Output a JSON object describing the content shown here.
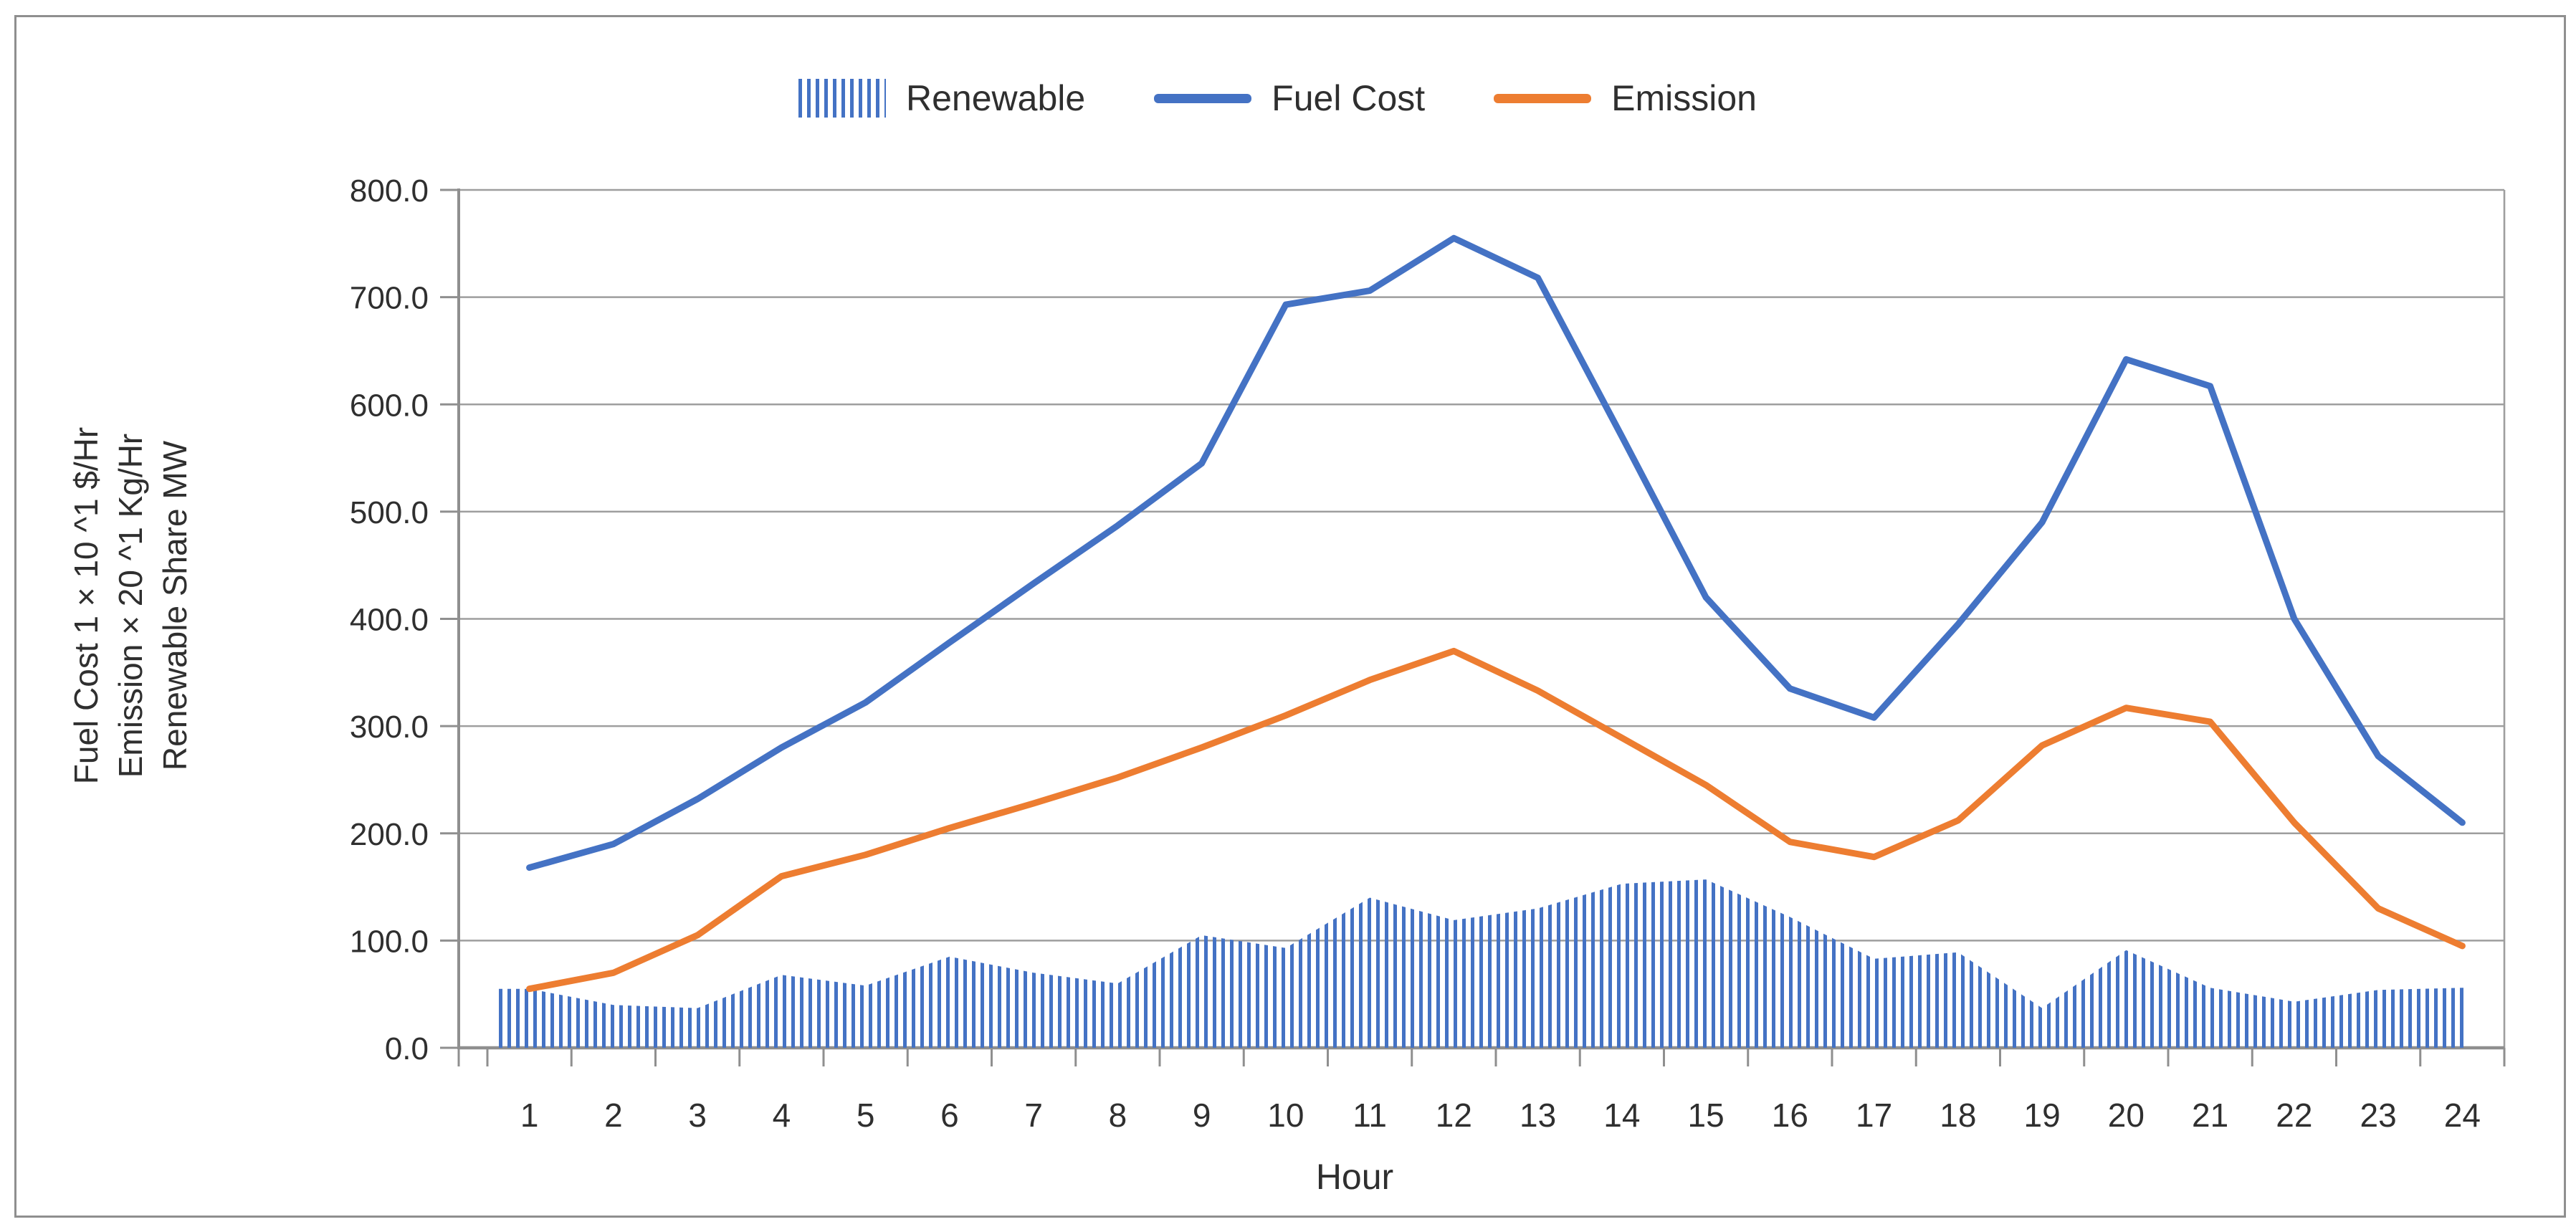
{
  "figure": {
    "background": "#ffffff",
    "border_color": "#8f8f8f"
  },
  "legend": {
    "position": "top",
    "items": [
      {
        "label": "Renewable",
        "swatch": "hatched-bars",
        "color": "#4472C4"
      },
      {
        "label": "Fuel Cost",
        "swatch": "line",
        "color": "#4472C4"
      },
      {
        "label": "Emission",
        "swatch": "line",
        "color": "#ED7D31"
      }
    ]
  },
  "y_axis": {
    "title_lines": [
      "Fuel Cost 1 × 10 ^1 $/Hr",
      "Emission × 20 ^1 Kg/Hr",
      "Renewable Share MW"
    ],
    "ticks": [
      "800.0",
      "700.0",
      "600.0",
      "500.0",
      "400.0",
      "300.0",
      "200.0",
      "100.0",
      "0.0"
    ],
    "min": 0,
    "max": 800,
    "step": 100
  },
  "x_axis": {
    "title": "Hour",
    "ticks": [
      "1",
      "2",
      "3",
      "4",
      "5",
      "6",
      "7",
      "8",
      "9",
      "10",
      "11",
      "12",
      "13",
      "14",
      "15",
      "16",
      "17",
      "18",
      "19",
      "20",
      "21",
      "22",
      "23",
      "24"
    ]
  },
  "chart_data": {
    "type": "combo",
    "title": "",
    "xlabel": "Hour",
    "ylabel": "Fuel Cost 1 × 10 ^1 $/Hr | Emission × 20 ^1 Kg/Hr | Renewable Share MW",
    "ylim": [
      0,
      800
    ],
    "grid": "horizontal",
    "legend_position": "top",
    "categories": [
      1,
      2,
      3,
      4,
      5,
      6,
      7,
      8,
      9,
      10,
      11,
      12,
      13,
      14,
      15,
      16,
      17,
      18,
      19,
      20,
      21,
      22,
      23,
      24
    ],
    "series": [
      {
        "name": "Renewable",
        "type": "hatched-area",
        "color": "#4472C4",
        "values": [
          55,
          40,
          37,
          68,
          58,
          85,
          70,
          60,
          105,
          93,
          140,
          119,
          130,
          153,
          157,
          122,
          83,
          89,
          37,
          91,
          56,
          43,
          54,
          56
        ]
      },
      {
        "name": "Fuel Cost",
        "type": "line",
        "color": "#4472C4",
        "values": [
          168,
          190,
          232,
          280,
          322,
          378,
          433,
          487,
          545,
          693,
          706,
          755,
          718,
          570,
          420,
          335,
          308,
          395,
          490,
          642,
          617,
          400,
          272,
          210
        ]
      },
      {
        "name": "Emission",
        "type": "line",
        "color": "#ED7D31",
        "values": [
          55,
          70,
          105,
          160,
          180,
          205,
          228,
          252,
          280,
          310,
          343,
          370,
          333,
          289,
          245,
          192,
          178,
          212,
          282,
          317,
          304,
          210,
          130,
          95
        ]
      }
    ],
    "style": {
      "gridline_color": "#9e9e9e",
      "axis_color": "#8f8f8f",
      "text_color": "#2f2f2f"
    }
  }
}
